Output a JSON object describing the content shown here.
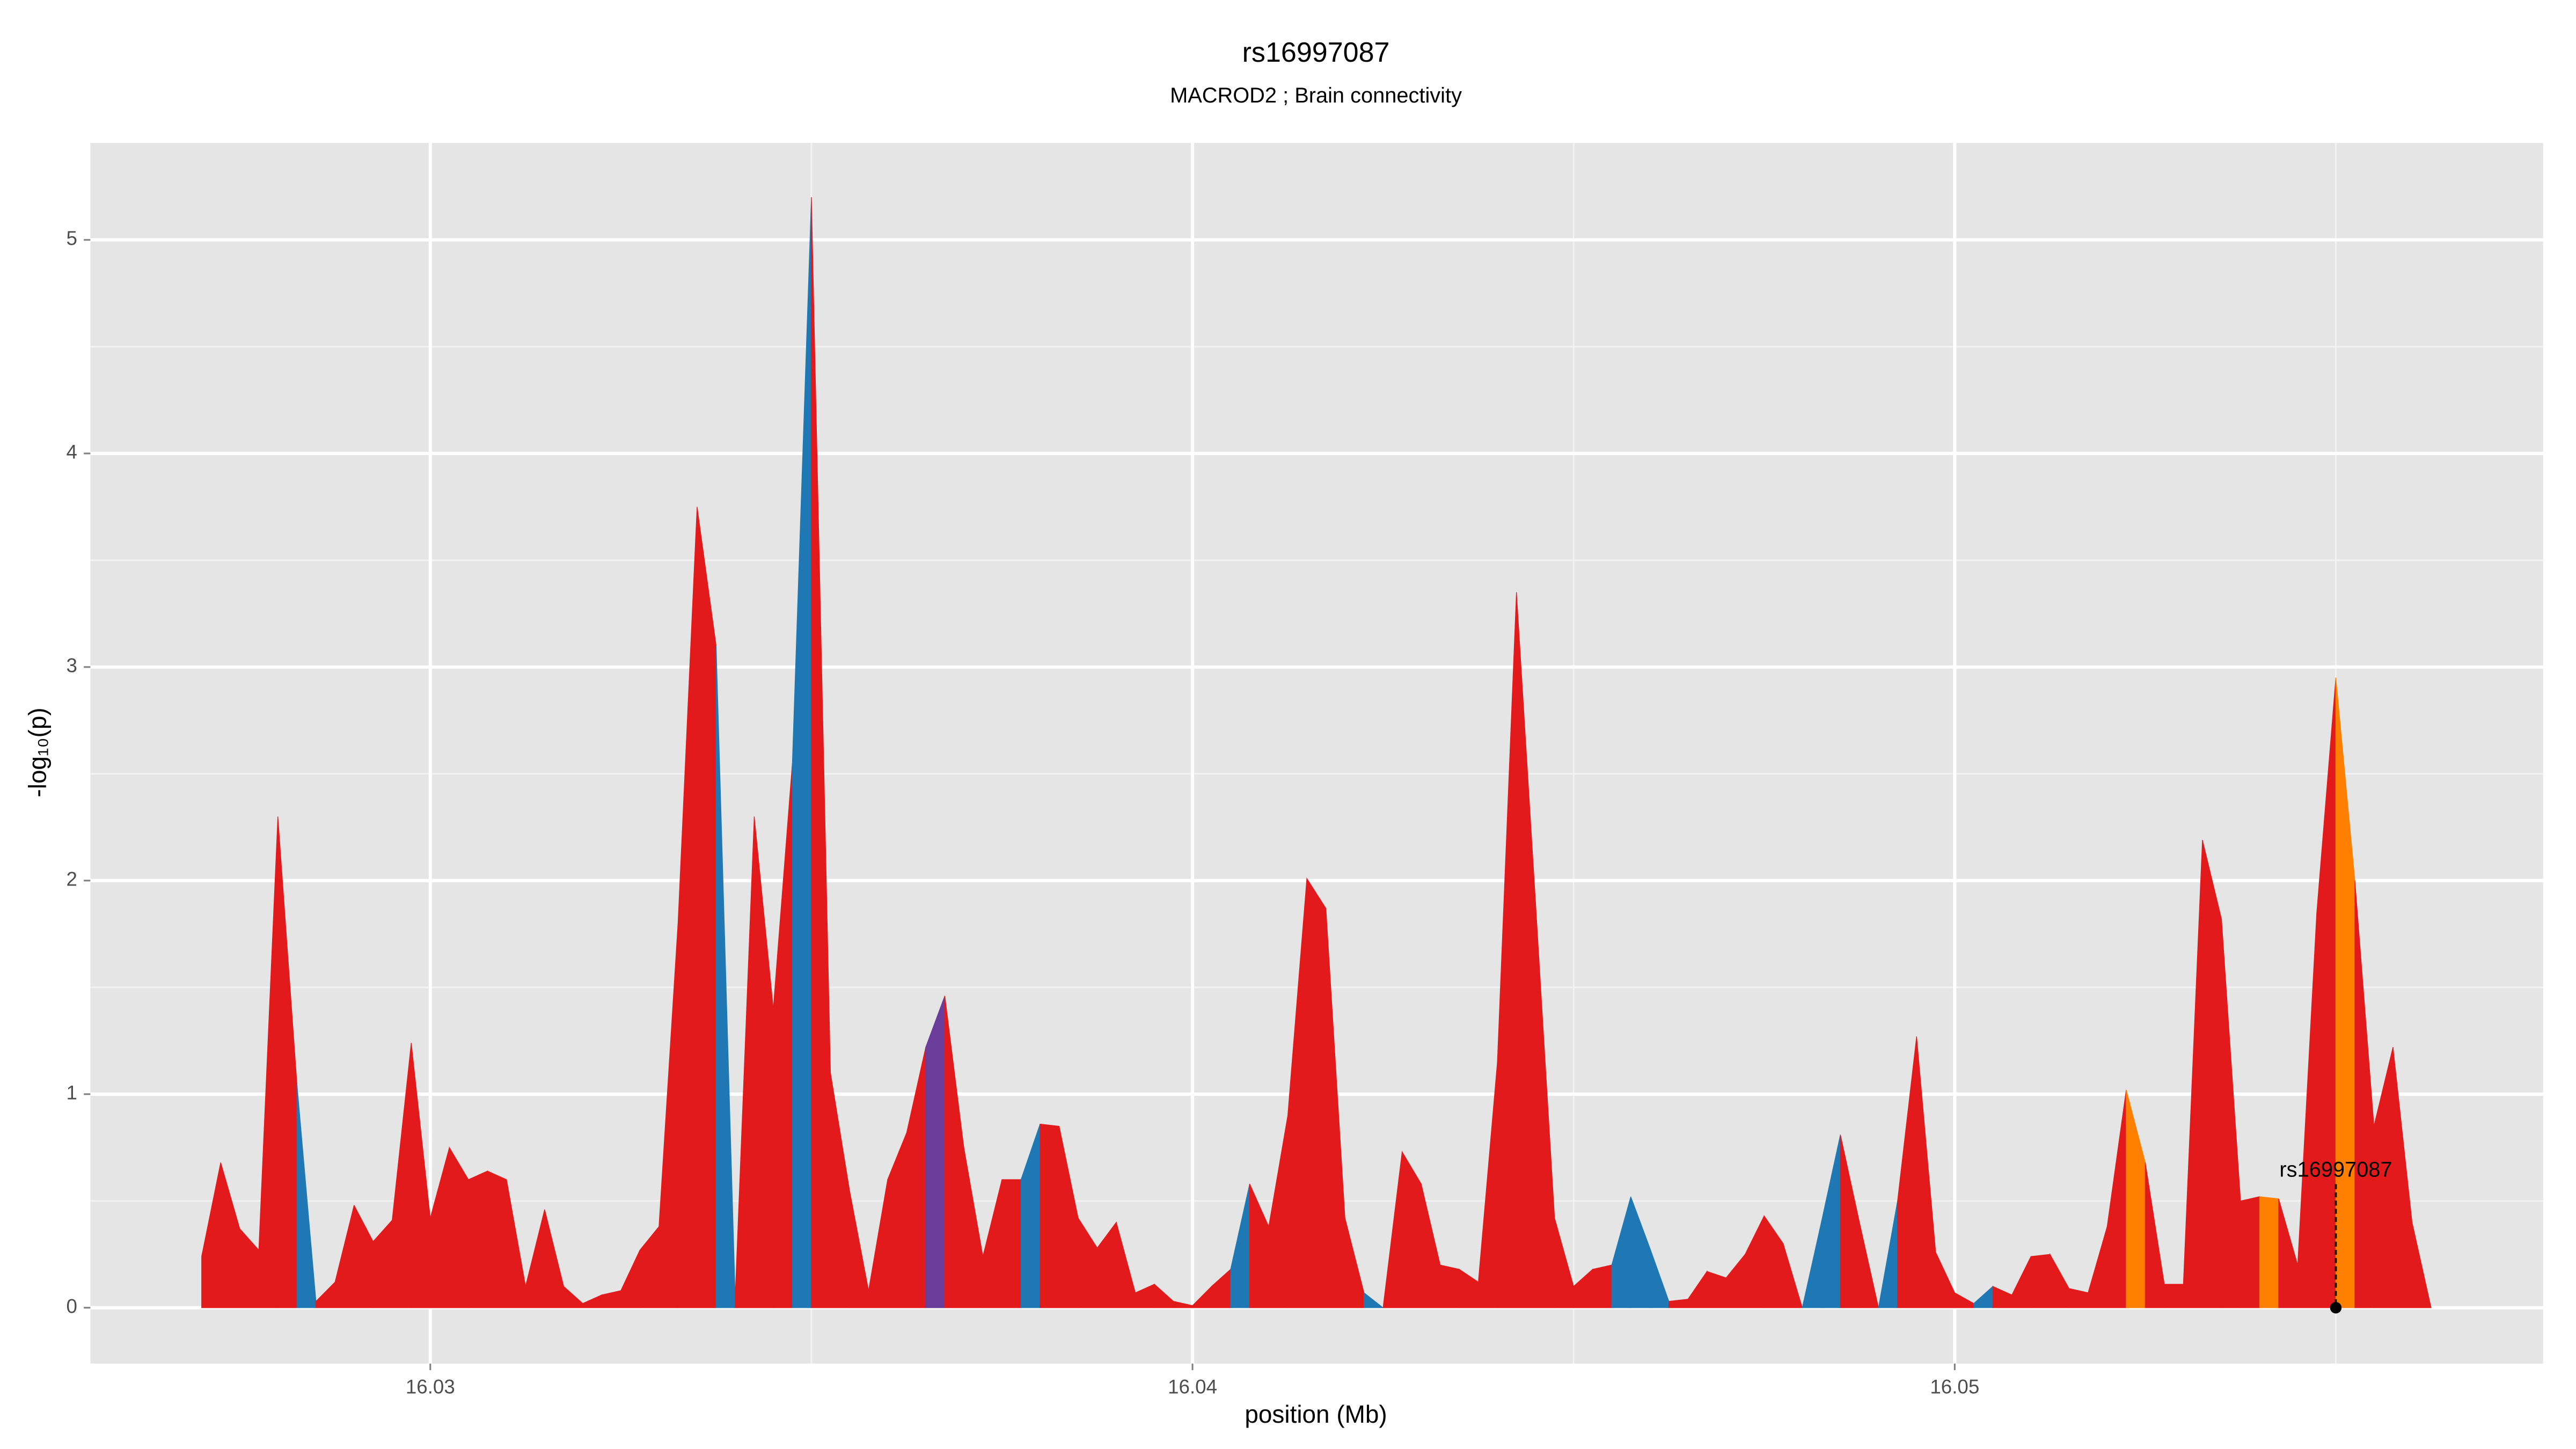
{
  "chart_data": {
    "type": "area",
    "title": "rs16997087",
    "subtitle": "MACROD2 ; Brain connectivity",
    "x_label": "position (Mb)",
    "y_label": "-log₁₀(p)",
    "x": [
      16.027,
      16.02725,
      16.0275,
      16.02775,
      16.028,
      16.02825,
      16.0285,
      16.02875,
      16.029,
      16.02925,
      16.0295,
      16.02975,
      16.03,
      16.03025,
      16.0305,
      16.03075,
      16.031,
      16.03125,
      16.0315,
      16.03175,
      16.032,
      16.03225,
      16.0325,
      16.03275,
      16.033,
      16.03325,
      16.0335,
      16.03375,
      16.034,
      16.03425,
      16.0345,
      16.03475,
      16.035,
      16.03525,
      16.0355,
      16.03575,
      16.036,
      16.03625,
      16.0365,
      16.03675,
      16.037,
      16.03725,
      16.0375,
      16.03775,
      16.038,
      16.03825,
      16.0385,
      16.03875,
      16.039,
      16.03925,
      16.0395,
      16.03975,
      16.04,
      16.04025,
      16.0405,
      16.04075,
      16.041,
      16.04125,
      16.0415,
      16.04175,
      16.042,
      16.04225,
      16.0425,
      16.04275,
      16.043,
      16.04325,
      16.0435,
      16.04375,
      16.044,
      16.04425,
      16.0445,
      16.04475,
      16.045,
      16.04525,
      16.0455,
      16.04575,
      16.046,
      16.04625,
      16.0465,
      16.04675,
      16.047,
      16.04725,
      16.0475,
      16.04775,
      16.048,
      16.04825,
      16.0485,
      16.04875,
      16.049,
      16.04925,
      16.0495,
      16.04975,
      16.05,
      16.05025,
      16.0505,
      16.05075,
      16.051,
      16.05125,
      16.0515,
      16.05175,
      16.052,
      16.05225,
      16.0525,
      16.05275,
      16.053,
      16.05325,
      16.0535,
      16.05375,
      16.054,
      16.05425,
      16.0545,
      16.05475,
      16.055,
      16.05525,
      16.0555,
      16.05575,
      16.056,
      16.05625
    ],
    "values": [
      0.24,
      0.68,
      0.37,
      0.27,
      2.3,
      1.05,
      0.03,
      0.12,
      0.48,
      0.31,
      0.41,
      1.24,
      0.42,
      0.75,
      0.6,
      0.64,
      0.6,
      0.1,
      0.46,
      0.1,
      0.02,
      0.06,
      0.08,
      0.27,
      0.38,
      1.8,
      3.75,
      3.1,
      0.05,
      2.3,
      1.4,
      2.55,
      5.2,
      1.1,
      0.55,
      0.08,
      0.6,
      0.82,
      1.22,
      1.46,
      0.75,
      0.24,
      0.6,
      0.6,
      0.86,
      0.85,
      0.42,
      0.28,
      0.4,
      0.07,
      0.11,
      0.03,
      0.01,
      0.1,
      0.18,
      0.58,
      0.38,
      0.9,
      2.01,
      1.87,
      0.42,
      0.07,
      0,
      0.73,
      0.58,
      0.2,
      0.18,
      0.12,
      1.15,
      3.35,
      1.9,
      0.42,
      0.1,
      0.18,
      0.2,
      0.52,
      0.28,
      0.03,
      0.04,
      0.17,
      0.14,
      0.25,
      0.43,
      0.3,
      0,
      0.4,
      0.81,
      0.4,
      0,
      0.5,
      1.27,
      0.26,
      0.07,
      0.02,
      0.1,
      0.06,
      0.24,
      0.25,
      0.09,
      0.07,
      0.38,
      1.02,
      0.68,
      0.11,
      0.11,
      2.19,
      1.82,
      0.5,
      0.52,
      0.51,
      0.2,
      1.85,
      2.95,
      2.0,
      0.85,
      1.22,
      0.4,
      0
    ],
    "colors": [
      "#e31a1c",
      "#e31a1c",
      "#e31a1c",
      "#e31a1c",
      "#e31a1c",
      "#1f78b4",
      "#e31a1c",
      "#e31a1c",
      "#e31a1c",
      "#e31a1c",
      "#e31a1c",
      "#e31a1c",
      "#e31a1c",
      "#e31a1c",
      "#e31a1c",
      "#e31a1c",
      "#e31a1c",
      "#e31a1c",
      "#e31a1c",
      "#e31a1c",
      "#e31a1c",
      "#e31a1c",
      "#e31a1c",
      "#e31a1c",
      "#e31a1c",
      "#e31a1c",
      "#e31a1c",
      "#1f78b4",
      "#e31a1c",
      "#e31a1c",
      "#e31a1c",
      "#1f78b4",
      "#e31a1c",
      "#e31a1c",
      "#e31a1c",
      "#e31a1c",
      "#e31a1c",
      "#e31a1c",
      "#6a3d9a",
      "#e31a1c",
      "#e31a1c",
      "#e31a1c",
      "#e31a1c",
      "#1f78b4",
      "#e31a1c",
      "#e31a1c",
      "#e31a1c",
      "#e31a1c",
      "#e31a1c",
      "#e31a1c",
      "#e31a1c",
      "#e31a1c",
      "#e31a1c",
      "#e31a1c",
      "#1f78b4",
      "#e31a1c",
      "#e31a1c",
      "#e31a1c",
      "#e31a1c",
      "#e31a1c",
      "#e31a1c",
      "#1f78b4",
      "#e31a1c",
      "#e31a1c",
      "#e31a1c",
      "#e31a1c",
      "#e31a1c",
      "#e31a1c",
      "#e31a1c",
      "#e31a1c",
      "#e31a1c",
      "#e31a1c",
      "#e31a1c",
      "#e31a1c",
      "#1f78b4",
      "#1f78b4",
      "#1f78b4",
      "#e31a1c",
      "#e31a1c",
      "#e31a1c",
      "#e31a1c",
      "#e31a1c",
      "#e31a1c",
      "#e31a1c",
      "#1f78b4",
      "#1f78b4",
      "#e31a1c",
      "#e31a1c",
      "#1f78b4",
      "#e31a1c",
      "#e31a1c",
      "#e31a1c",
      "#e31a1c",
      "#1f78b4",
      "#e31a1c",
      "#e31a1c",
      "#e31a1c",
      "#e31a1c",
      "#e31a1c",
      "#e31a1c",
      "#e31a1c",
      "#ff7f00",
      "#e31a1c",
      "#e31a1c",
      "#e31a1c",
      "#e31a1c",
      "#e31a1c",
      "#e31a1c",
      "#ff7f00",
      "#e31a1c",
      "#e31a1c",
      "#e31a1c",
      "#ff7f00",
      "#e31a1c",
      "#e31a1c",
      "#e31a1c",
      "#e31a1c",
      "#e31a1c"
    ],
    "annotation": {
      "label": "rs16997087",
      "x": 16.055,
      "y": 0.64
    },
    "xlim": [
      16.02554,
      16.05772
    ],
    "ylim": [
      -0.2615,
      5.454
    ],
    "xticks": [
      16.03,
      16.04,
      16.05
    ],
    "yticks": [
      0,
      1,
      2,
      3,
      4,
      5
    ],
    "x_minor_grid": [
      16.035,
      16.045,
      16.055
    ],
    "y_minor_grid": [
      0.5,
      1.5,
      2.5,
      3.5,
      4.5
    ],
    "grid": true,
    "background": "#e5e5e5"
  }
}
